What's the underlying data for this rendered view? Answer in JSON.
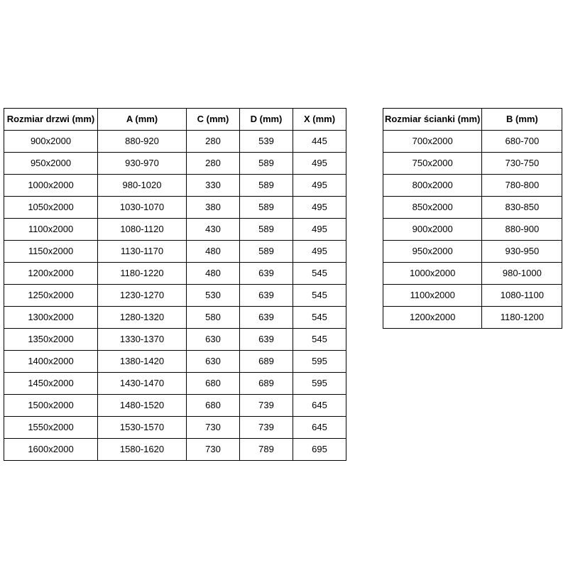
{
  "colors": {
    "background": "#ffffff",
    "border": "#000000",
    "text": "#000000"
  },
  "door_table": {
    "headers": [
      "Rozmiar drzwi (mm)",
      "A (mm)",
      "C (mm)",
      "D (mm)",
      "X (mm)"
    ],
    "rows": [
      [
        "900x2000",
        "880-920",
        "280",
        "539",
        "445"
      ],
      [
        "950x2000",
        "930-970",
        "280",
        "589",
        "495"
      ],
      [
        "1000x2000",
        "980-1020",
        "330",
        "589",
        "495"
      ],
      [
        "1050x2000",
        "1030-1070",
        "380",
        "589",
        "495"
      ],
      [
        "1100x2000",
        "1080-1120",
        "430",
        "589",
        "495"
      ],
      [
        "1150x2000",
        "1130-1170",
        "480",
        "589",
        "495"
      ],
      [
        "1200x2000",
        "1180-1220",
        "480",
        "639",
        "545"
      ],
      [
        "1250x2000",
        "1230-1270",
        "530",
        "639",
        "545"
      ],
      [
        "1300x2000",
        "1280-1320",
        "580",
        "639",
        "545"
      ],
      [
        "1350x2000",
        "1330-1370",
        "630",
        "639",
        "545"
      ],
      [
        "1400x2000",
        "1380-1420",
        "630",
        "689",
        "595"
      ],
      [
        "1450x2000",
        "1430-1470",
        "680",
        "689",
        "595"
      ],
      [
        "1500x2000",
        "1480-1520",
        "680",
        "739",
        "645"
      ],
      [
        "1550x2000",
        "1530-1570",
        "730",
        "739",
        "645"
      ],
      [
        "1600x2000",
        "1580-1620",
        "730",
        "789",
        "695"
      ]
    ]
  },
  "wall_table": {
    "headers": [
      "Rozmiar ścianki (mm)",
      "B (mm)"
    ],
    "rows": [
      [
        "700x2000",
        "680-700"
      ],
      [
        "750x2000",
        "730-750"
      ],
      [
        "800x2000",
        "780-800"
      ],
      [
        "850x2000",
        "830-850"
      ],
      [
        "900x2000",
        "880-900"
      ],
      [
        "950x2000",
        "930-950"
      ],
      [
        "1000x2000",
        "980-1000"
      ],
      [
        "1100x2000",
        "1080-1100"
      ],
      [
        "1200x2000",
        "1180-1200"
      ]
    ]
  }
}
